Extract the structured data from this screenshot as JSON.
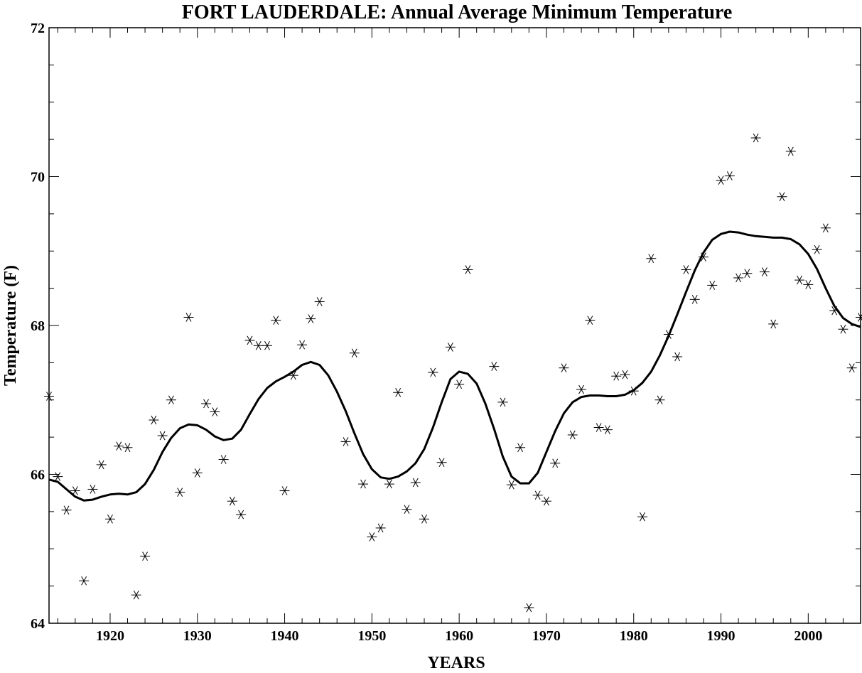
{
  "chart_data": {
    "type": "scatter",
    "title": "FORT LAUDERDALE: Annual Average Minimum Temperature",
    "xlabel": "YEARS",
    "ylabel": "Temperature (F)",
    "xlim": [
      1913,
      2006
    ],
    "ylim": [
      64,
      72
    ],
    "x_major_ticks": [
      1920,
      1930,
      1940,
      1950,
      1960,
      1970,
      1980,
      1990,
      2000
    ],
    "y_major_ticks": [
      64,
      66,
      68,
      70,
      72
    ],
    "x_tick_labels": [
      "1920",
      "1930",
      "1940",
      "1950",
      "1960",
      "1970",
      "1980",
      "1990",
      "2000"
    ],
    "y_tick_labels": [
      "64",
      "66",
      "68",
      "70",
      "72"
    ],
    "grid": false,
    "series": [
      {
        "marker": "asterisk",
        "points": [
          [
            1913,
            67.05
          ],
          [
            1914,
            65.97
          ],
          [
            1915,
            65.52
          ],
          [
            1916,
            65.78
          ],
          [
            1917,
            64.57
          ],
          [
            1918,
            65.8
          ],
          [
            1919,
            66.13
          ],
          [
            1920,
            65.4
          ],
          [
            1921,
            66.38
          ],
          [
            1922,
            66.36
          ],
          [
            1923,
            64.38
          ],
          [
            1924,
            64.9
          ],
          [
            1925,
            66.73
          ],
          [
            1926,
            66.52
          ],
          [
            1927,
            67.0
          ],
          [
            1928,
            65.76
          ],
          [
            1929,
            68.11
          ],
          [
            1930,
            66.02
          ],
          [
            1931,
            66.95
          ],
          [
            1932,
            66.84
          ],
          [
            1933,
            66.2
          ],
          [
            1934,
            65.64
          ],
          [
            1935,
            65.46
          ],
          [
            1936,
            67.8
          ],
          [
            1937,
            67.73
          ],
          [
            1938,
            67.73
          ],
          [
            1939,
            68.07
          ],
          [
            1940,
            65.78
          ],
          [
            1941,
            67.33
          ],
          [
            1942,
            67.74
          ],
          [
            1943,
            68.09
          ],
          [
            1944,
            68.32
          ],
          [
            1947,
            66.44
          ],
          [
            1948,
            67.63
          ],
          [
            1949,
            65.87
          ],
          [
            1950,
            65.16
          ],
          [
            1951,
            65.28
          ],
          [
            1952,
            65.87
          ],
          [
            1953,
            67.1
          ],
          [
            1954,
            65.53
          ],
          [
            1955,
            65.89
          ],
          [
            1956,
            65.4
          ],
          [
            1957,
            67.37
          ],
          [
            1958,
            66.16
          ],
          [
            1959,
            67.71
          ],
          [
            1960,
            67.21
          ],
          [
            1961,
            68.75
          ],
          [
            1964,
            67.45
          ],
          [
            1965,
            66.97
          ],
          [
            1966,
            65.86
          ],
          [
            1967,
            66.36
          ],
          [
            1968,
            64.21
          ],
          [
            1969,
            65.72
          ],
          [
            1970,
            65.64
          ],
          [
            1971,
            66.15
          ],
          [
            1972,
            67.43
          ],
          [
            1973,
            66.53
          ],
          [
            1974,
            67.14
          ],
          [
            1975,
            68.07
          ],
          [
            1976,
            66.63
          ],
          [
            1977,
            66.6
          ],
          [
            1978,
            67.32
          ],
          [
            1979,
            67.34
          ],
          [
            1980,
            67.12
          ],
          [
            1981,
            65.43
          ],
          [
            1982,
            68.9
          ],
          [
            1983,
            67.0
          ],
          [
            1984,
            67.88
          ],
          [
            1985,
            67.58
          ],
          [
            1986,
            68.75
          ],
          [
            1987,
            68.35
          ],
          [
            1988,
            68.92
          ],
          [
            1989,
            68.54
          ],
          [
            1990,
            69.95
          ],
          [
            1991,
            70.01
          ],
          [
            1992,
            68.64
          ],
          [
            1993,
            68.7
          ],
          [
            1994,
            70.52
          ],
          [
            1995,
            68.72
          ],
          [
            1996,
            68.02
          ],
          [
            1997,
            69.73
          ],
          [
            1998,
            70.34
          ],
          [
            1999,
            68.61
          ],
          [
            2000,
            68.55
          ],
          [
            2001,
            69.02
          ],
          [
            2002,
            69.31
          ],
          [
            2003,
            68.2
          ],
          [
            2004,
            67.95
          ],
          [
            2005,
            67.43
          ],
          [
            2006,
            68.11
          ]
        ]
      },
      {
        "marker": "line",
        "points": [
          [
            1913,
            65.93
          ],
          [
            1914,
            65.9
          ],
          [
            1915,
            65.8
          ],
          [
            1916,
            65.7
          ],
          [
            1917,
            65.65
          ],
          [
            1918,
            65.66
          ],
          [
            1919,
            65.7
          ],
          [
            1920,
            65.73
          ],
          [
            1921,
            65.74
          ],
          [
            1922,
            65.73
          ],
          [
            1923,
            65.76
          ],
          [
            1924,
            65.87
          ],
          [
            1925,
            66.06
          ],
          [
            1926,
            66.3
          ],
          [
            1927,
            66.49
          ],
          [
            1928,
            66.62
          ],
          [
            1929,
            66.67
          ],
          [
            1930,
            66.66
          ],
          [
            1931,
            66.6
          ],
          [
            1932,
            66.51
          ],
          [
            1933,
            66.46
          ],
          [
            1934,
            66.48
          ],
          [
            1935,
            66.6
          ],
          [
            1936,
            66.81
          ],
          [
            1937,
            67.01
          ],
          [
            1938,
            67.16
          ],
          [
            1939,
            67.25
          ],
          [
            1940,
            67.31
          ],
          [
            1941,
            67.38
          ],
          [
            1942,
            67.47
          ],
          [
            1943,
            67.51
          ],
          [
            1944,
            67.47
          ],
          [
            1945,
            67.33
          ],
          [
            1946,
            67.11
          ],
          [
            1947,
            66.85
          ],
          [
            1948,
            66.55
          ],
          [
            1949,
            66.27
          ],
          [
            1950,
            66.07
          ],
          [
            1951,
            65.96
          ],
          [
            1952,
            65.94
          ],
          [
            1953,
            65.97
          ],
          [
            1954,
            66.04
          ],
          [
            1955,
            66.15
          ],
          [
            1956,
            66.34
          ],
          [
            1957,
            66.63
          ],
          [
            1958,
            66.97
          ],
          [
            1959,
            67.28
          ],
          [
            1960,
            67.38
          ],
          [
            1961,
            67.35
          ],
          [
            1962,
            67.22
          ],
          [
            1963,
            66.95
          ],
          [
            1964,
            66.61
          ],
          [
            1965,
            66.24
          ],
          [
            1966,
            65.97
          ],
          [
            1967,
            65.88
          ],
          [
            1968,
            65.88
          ],
          [
            1969,
            66.02
          ],
          [
            1970,
            66.3
          ],
          [
            1971,
            66.58
          ],
          [
            1972,
            66.82
          ],
          [
            1973,
            66.97
          ],
          [
            1974,
            67.04
          ],
          [
            1975,
            67.06
          ],
          [
            1976,
            67.06
          ],
          [
            1977,
            67.05
          ],
          [
            1978,
            67.05
          ],
          [
            1979,
            67.07
          ],
          [
            1980,
            67.13
          ],
          [
            1981,
            67.23
          ],
          [
            1982,
            67.38
          ],
          [
            1983,
            67.6
          ],
          [
            1984,
            67.86
          ],
          [
            1985,
            68.15
          ],
          [
            1986,
            68.45
          ],
          [
            1987,
            68.74
          ],
          [
            1988,
            68.98
          ],
          [
            1989,
            69.15
          ],
          [
            1990,
            69.23
          ],
          [
            1991,
            69.26
          ],
          [
            1992,
            69.25
          ],
          [
            1993,
            69.22
          ],
          [
            1994,
            69.2
          ],
          [
            1995,
            69.19
          ],
          [
            1996,
            69.18
          ],
          [
            1997,
            69.18
          ],
          [
            1998,
            69.16
          ],
          [
            1999,
            69.09
          ],
          [
            2000,
            68.96
          ],
          [
            2001,
            68.76
          ],
          [
            2002,
            68.5
          ],
          [
            2003,
            68.26
          ],
          [
            2004,
            68.1
          ],
          [
            2005,
            68.02
          ],
          [
            2006,
            67.98
          ]
        ]
      }
    ]
  }
}
